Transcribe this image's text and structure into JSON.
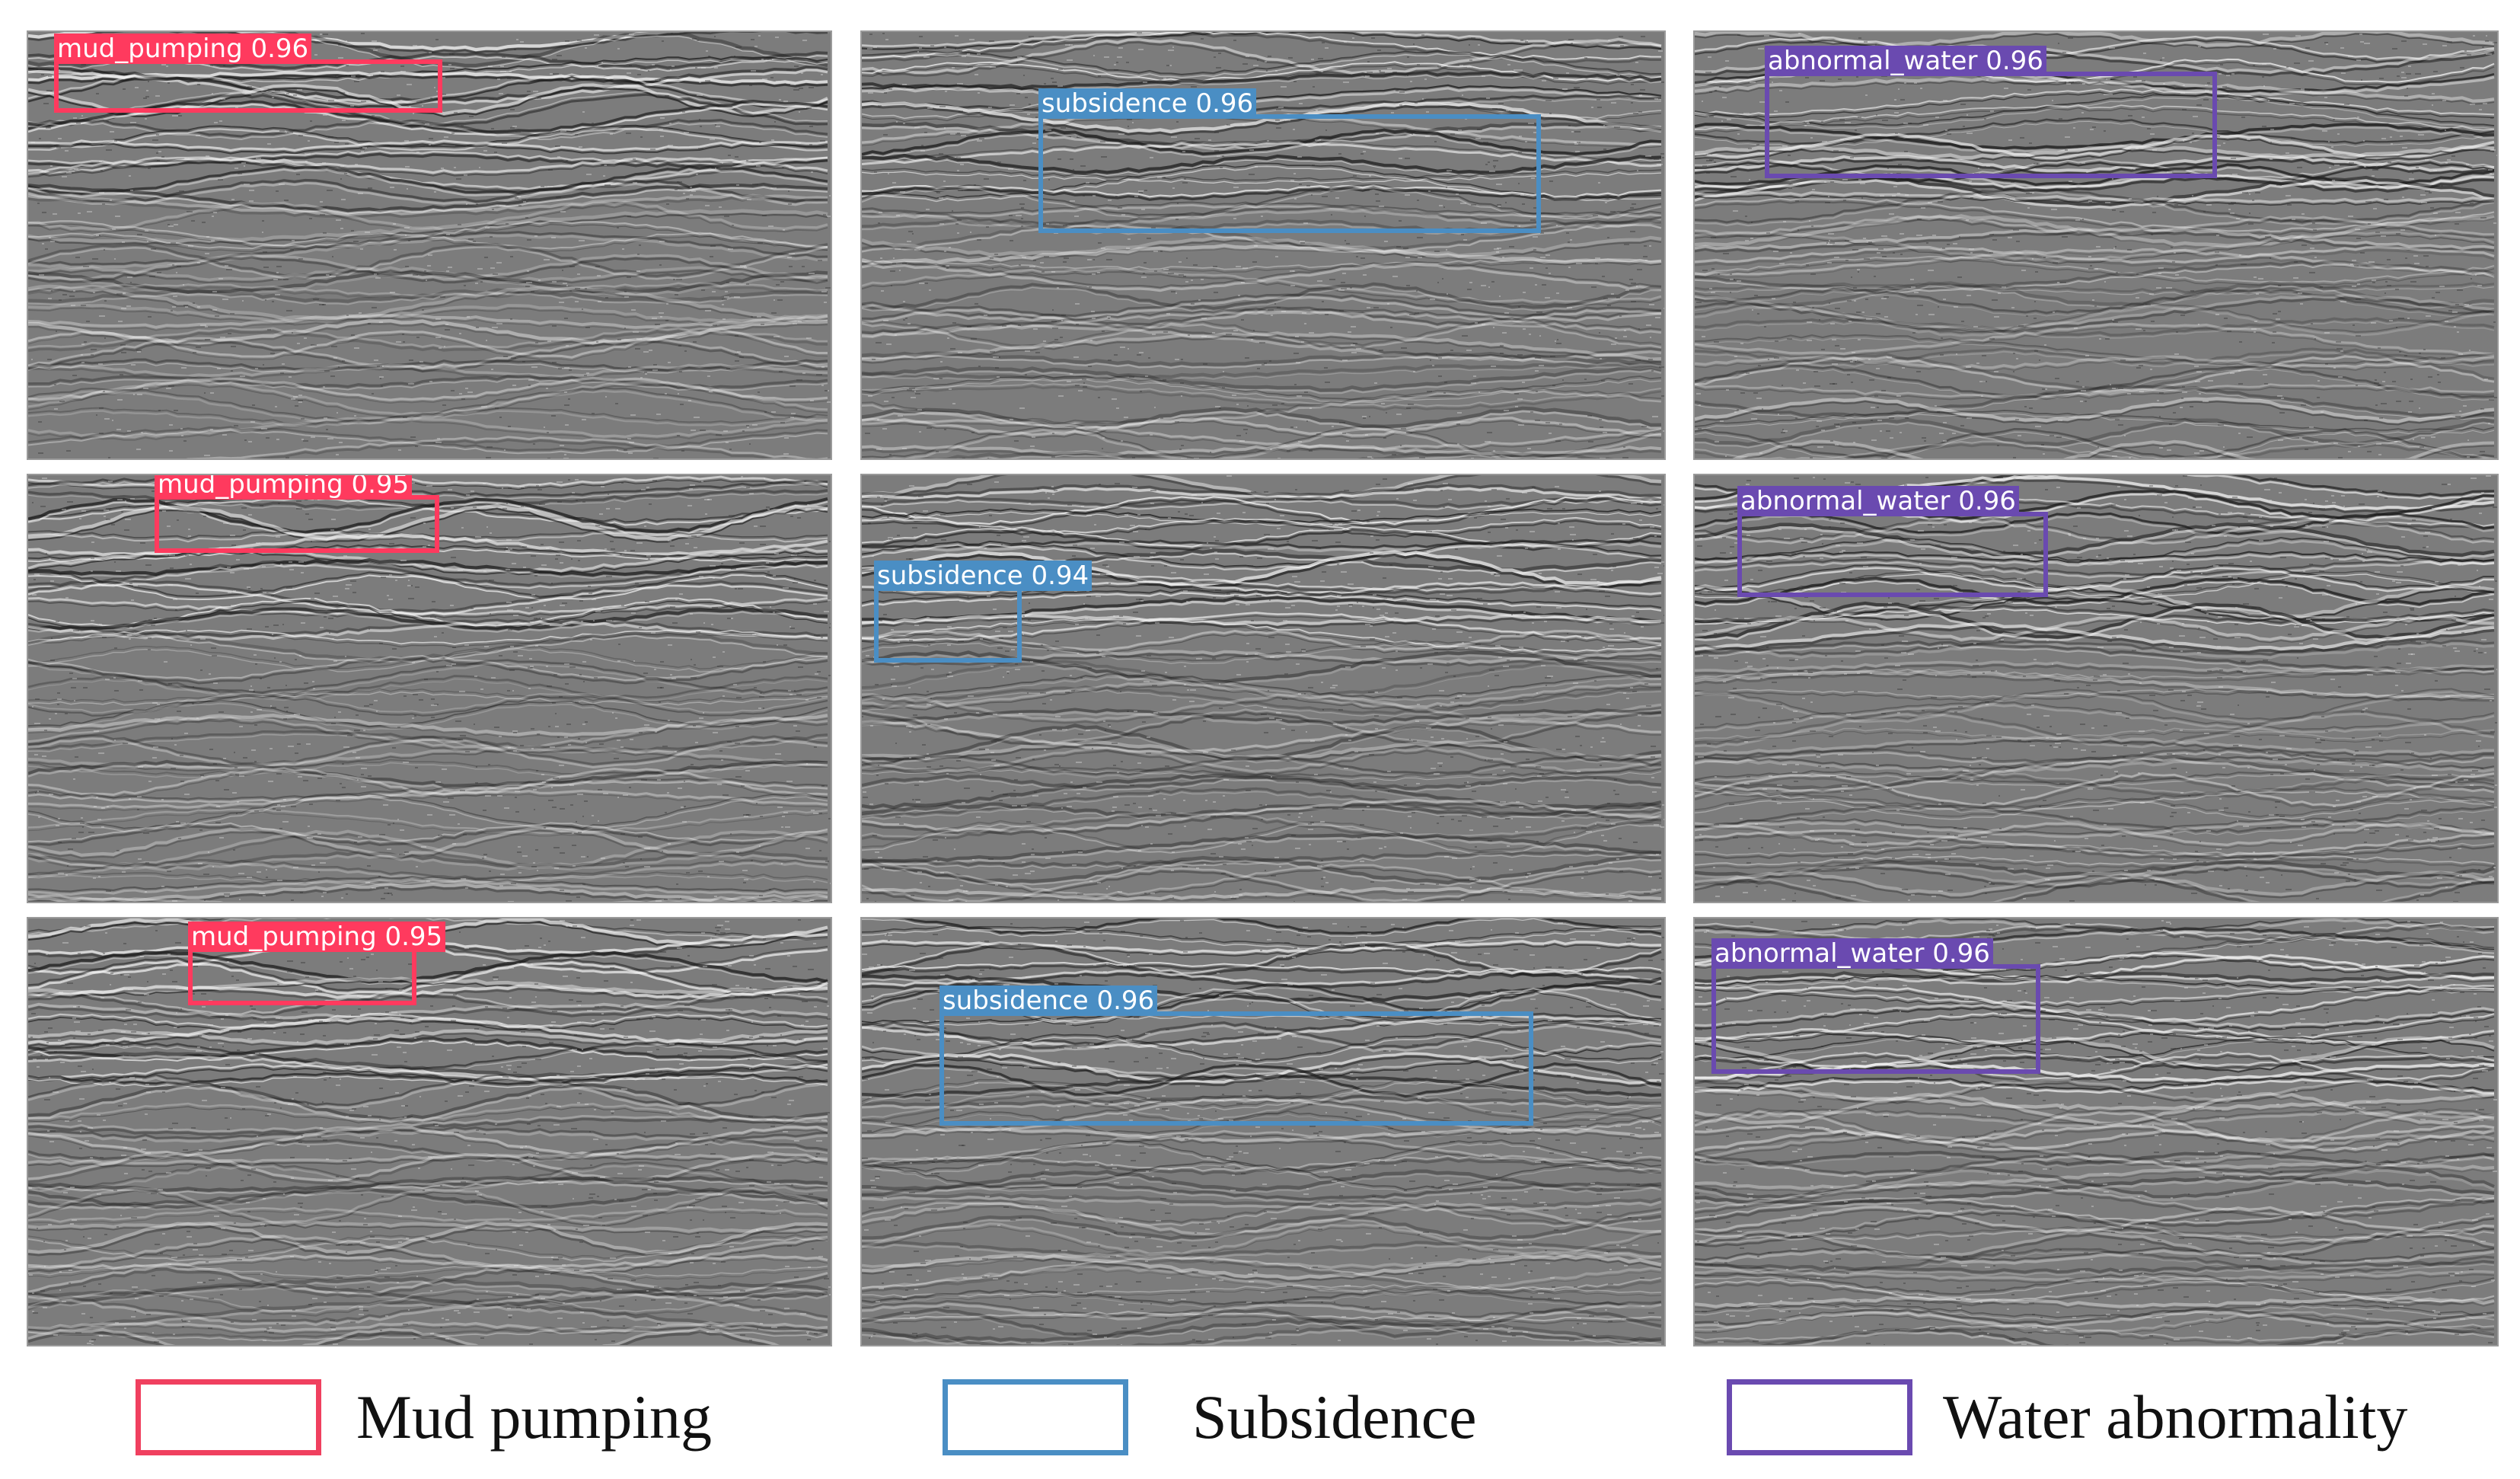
{
  "panels": [
    {
      "label": "mud_pumping 0.96",
      "color": "#ff3a5e",
      "type": "mud_pumping"
    },
    {
      "label": "subsidence 0.96",
      "color": "#4a8ec4",
      "type": "subsidence"
    },
    {
      "label": "abnormal_water 0.96",
      "color": "#6a4ab0",
      "type": "abnormal_water"
    },
    {
      "label": "mud_pumping 0.95",
      "color": "#ff3a5e",
      "type": "mud_pumping"
    },
    {
      "label": "subsidence 0.94",
      "color": "#4a8ec4",
      "type": "subsidence"
    },
    {
      "label": "abnormal_water 0.96",
      "color": "#6a4ab0",
      "type": "abnormal_water"
    },
    {
      "label": "mud_pumping 0.95",
      "color": "#ff3a5e",
      "type": "mud_pumping"
    },
    {
      "label": "subsidence 0.96",
      "color": "#4a8ec4",
      "type": "subsidence"
    },
    {
      "label": "abnormal_water 0.96",
      "color": "#6a4ab0",
      "type": "abnormal_water"
    }
  ],
  "legend": [
    {
      "text": "Mud pumping",
      "color": "#f0405f"
    },
    {
      "text": "Subsidence",
      "color": "#4a8ec4"
    },
    {
      "text": "Water abnormality",
      "color": "#6a4ab0"
    }
  ]
}
